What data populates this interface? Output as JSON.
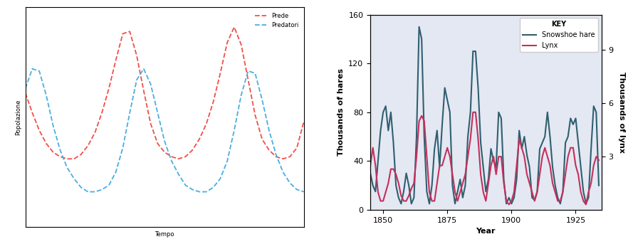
{
  "chart_data": [
    {
      "type": "line",
      "x_label": "Tempo",
      "y_label": "Popolazione",
      "x": [
        0,
        2.5,
        5,
        7.5,
        10,
        12.5,
        15,
        17.5,
        20,
        22.5,
        25,
        27.5,
        30,
        32.5,
        35,
        37.5,
        40,
        42.5,
        45,
        47.5,
        50,
        52.5,
        55,
        57.5,
        60,
        62.5,
        65,
        67.5,
        70,
        72.5,
        75,
        77.5,
        80,
        82.5,
        85,
        87.5,
        90,
        92.5,
        95,
        97.5,
        100
      ],
      "xlim": [
        0,
        100
      ],
      "ylim": [
        0,
        100
      ],
      "tick_labels": false,
      "legend": "upper right",
      "series": [
        {
          "name": "Prede",
          "color": "#f0504a",
          "line_style": "dashed",
          "values": [
            61,
            52,
            44,
            38,
            34,
            32,
            31,
            31,
            33,
            37,
            43,
            52,
            63,
            76,
            88,
            89,
            78,
            62,
            47,
            38,
            34,
            32,
            31,
            32,
            35,
            40,
            47,
            57,
            70,
            84,
            91,
            83,
            67,
            51,
            40,
            35,
            32,
            31,
            32,
            36,
            48
          ]
        },
        {
          "name": "Predatori",
          "color": "#4aaee0",
          "line_style": "dashed",
          "values": [
            63,
            72,
            71,
            60,
            46,
            35,
            27,
            22,
            18,
            16,
            16,
            17,
            19,
            25,
            36,
            52,
            67,
            72,
            65,
            52,
            39,
            30,
            24,
            19,
            17,
            16,
            16,
            18,
            22,
            30,
            44,
            60,
            71,
            70,
            58,
            44,
            33,
            25,
            20,
            17,
            16
          ]
        }
      ]
    },
    {
      "type": "line",
      "x_label": "Year",
      "y_label": "Thousands of hares",
      "y2_label": "Thousands of lynx",
      "legend_title": "KEY",
      "legend": "upper right",
      "x": [
        1845,
        1846,
        1847,
        1848,
        1849,
        1850,
        1851,
        1852,
        1853,
        1854,
        1855,
        1856,
        1857,
        1858,
        1859,
        1860,
        1861,
        1862,
        1863,
        1864,
        1865,
        1866,
        1867,
        1868,
        1869,
        1870,
        1871,
        1872,
        1873,
        1874,
        1875,
        1876,
        1877,
        1878,
        1879,
        1880,
        1881,
        1882,
        1883,
        1884,
        1885,
        1886,
        1887,
        1888,
        1889,
        1890,
        1891,
        1892,
        1893,
        1894,
        1895,
        1896,
        1897,
        1898,
        1899,
        1900,
        1901,
        1902,
        1903,
        1904,
        1905,
        1906,
        1907,
        1908,
        1909,
        1910,
        1911,
        1912,
        1913,
        1914,
        1915,
        1916,
        1917,
        1918,
        1919,
        1920,
        1921,
        1922,
        1923,
        1924,
        1925,
        1926,
        1927,
        1928,
        1929,
        1930,
        1931,
        1932,
        1933,
        1934
      ],
      "xlim": [
        1845,
        1935
      ],
      "xticks": [
        1850,
        1875,
        1900,
        1925
      ],
      "ylim": [
        0,
        160
      ],
      "yticks": [
        0,
        40,
        80,
        120,
        160
      ],
      "y2lim": [
        0,
        11
      ],
      "y2ticks": [
        3,
        6,
        9
      ],
      "series": [
        {
          "name": "Snowshoe hare",
          "color": "#2f5f70",
          "line_style": "solid",
          "values": [
            30,
            20,
            15,
            40,
            65,
            80,
            85,
            65,
            80,
            55,
            20,
            10,
            5,
            15,
            30,
            20,
            5,
            10,
            60,
            150,
            140,
            60,
            15,
            5,
            20,
            50,
            65,
            35,
            70,
            100,
            90,
            80,
            20,
            5,
            15,
            25,
            10,
            20,
            60,
            80,
            130,
            130,
            100,
            55,
            35,
            15,
            25,
            50,
            40,
            35,
            80,
            75,
            25,
            5,
            10,
            5,
            10,
            25,
            65,
            50,
            60,
            45,
            35,
            10,
            8,
            15,
            50,
            55,
            60,
            80,
            60,
            35,
            20,
            10,
            5,
            15,
            55,
            60,
            75,
            70,
            75,
            55,
            35,
            15,
            5,
            10,
            50,
            85,
            80,
            20
          ]
        },
        {
          "name": "Lynx",
          "color": "#c4305c",
          "line_style": "solid",
          "axis": "y2",
          "values": [
            2.5,
            3.5,
            2.5,
            1.0,
            0.5,
            0.5,
            1.0,
            1.5,
            2.3,
            2.3,
            2.0,
            1.5,
            0.8,
            0.5,
            0.5,
            0.8,
            1.2,
            1.5,
            3.0,
            5.0,
            5.3,
            5.0,
            3.0,
            1.0,
            0.5,
            0.5,
            1.5,
            2.5,
            2.5,
            3.0,
            3.5,
            3.0,
            2.0,
            1.0,
            0.5,
            1.0,
            1.5,
            2.0,
            3.0,
            4.0,
            5.5,
            5.5,
            4.0,
            2.0,
            1.0,
            0.5,
            1.5,
            2.5,
            3.0,
            2.0,
            3.0,
            3.0,
            1.5,
            0.5,
            0.3,
            0.5,
            1.0,
            2.5,
            4.0,
            3.5,
            3.0,
            2.0,
            1.5,
            1.0,
            0.5,
            1.0,
            2.0,
            3.0,
            3.5,
            3.0,
            2.5,
            1.5,
            1.0,
            0.5,
            0.5,
            1.0,
            2.0,
            3.0,
            3.5,
            3.5,
            2.5,
            2.0,
            1.0,
            0.5,
            0.3,
            1.0,
            1.5,
            2.5,
            3.0,
            2.8
          ]
        }
      ]
    }
  ]
}
